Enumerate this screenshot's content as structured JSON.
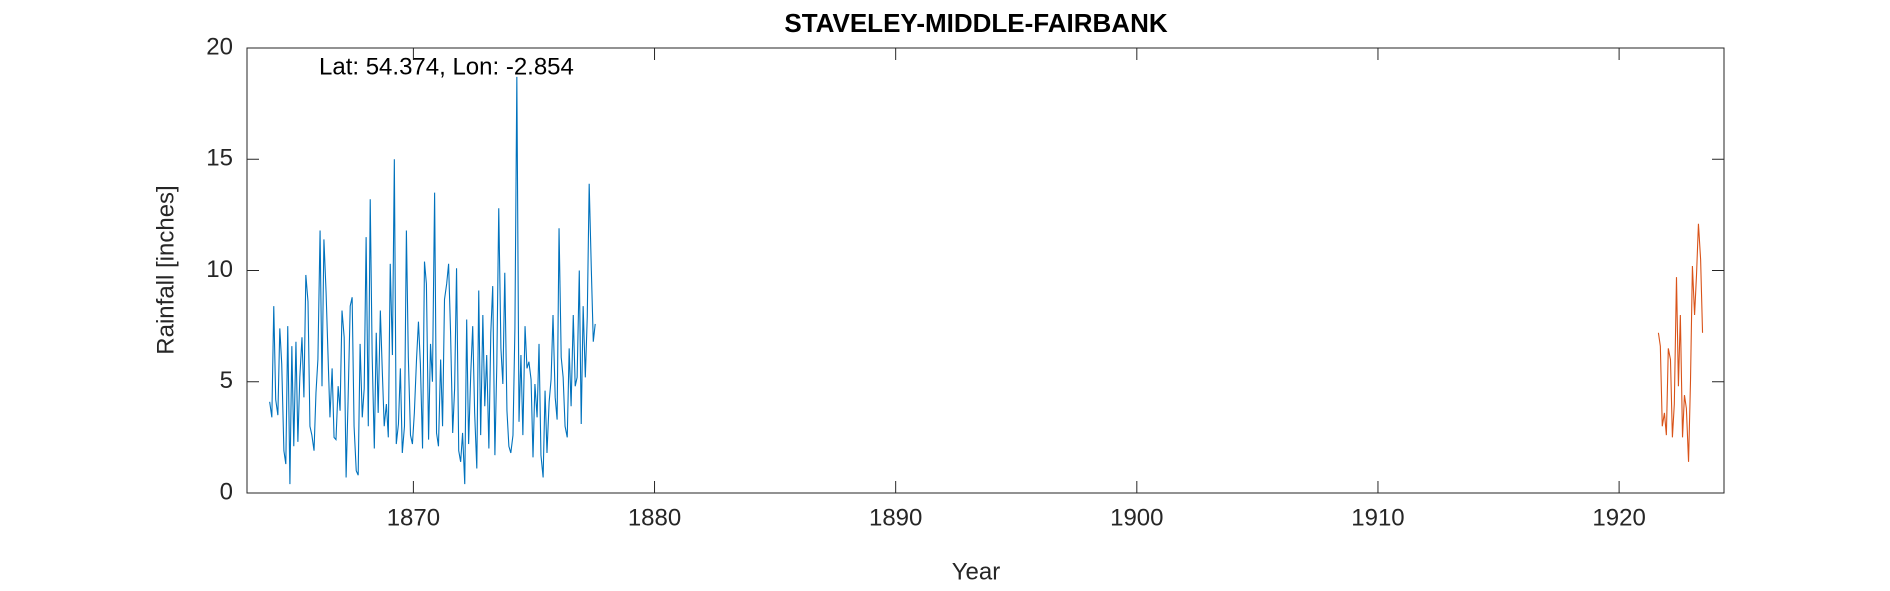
{
  "chart_data": {
    "type": "line",
    "title": "STAVELEY-MIDDLE-FAIRBANK",
    "xlabel": "Year",
    "ylabel": "Rainfall [inches]",
    "annotation": "Lat: 54.374, Lon: -2.854",
    "xlim": [
      1863.1,
      1924.35
    ],
    "ylim": [
      0,
      20
    ],
    "xticks": [
      1870,
      1880,
      1890,
      1900,
      1910,
      1920
    ],
    "yticks": [
      0,
      5,
      10,
      15,
      20
    ],
    "grid": false,
    "series": [
      {
        "color": "#0072bd",
        "x": [
          1864.04,
          1864.13,
          1864.21,
          1864.29,
          1864.38,
          1864.46,
          1864.54,
          1864.63,
          1864.71,
          1864.79,
          1864.88,
          1864.96,
          1865.04,
          1865.13,
          1865.21,
          1865.29,
          1865.38,
          1865.46,
          1865.54,
          1865.63,
          1865.71,
          1865.79,
          1865.88,
          1865.96,
          1866.04,
          1866.13,
          1866.21,
          1866.29,
          1866.38,
          1866.46,
          1866.54,
          1866.63,
          1866.71,
          1866.79,
          1866.88,
          1866.96,
          1867.04,
          1867.13,
          1867.21,
          1867.29,
          1867.38,
          1867.46,
          1867.54,
          1867.63,
          1867.71,
          1867.79,
          1867.88,
          1867.96,
          1868.04,
          1868.13,
          1868.21,
          1868.29,
          1868.38,
          1868.46,
          1868.54,
          1868.63,
          1868.71,
          1868.79,
          1868.88,
          1868.96,
          1869.04,
          1869.13,
          1869.21,
          1869.29,
          1869.38,
          1869.46,
          1869.54,
          1869.63,
          1869.71,
          1869.79,
          1869.88,
          1869.96,
          1870.04,
          1870.13,
          1870.21,
          1870.29,
          1870.38,
          1870.46,
          1870.54,
          1870.63,
          1870.71,
          1870.79,
          1870.88,
          1870.96,
          1871.04,
          1871.13,
          1871.21,
          1871.29,
          1871.38,
          1871.46,
          1871.54,
          1871.63,
          1871.71,
          1871.79,
          1871.88,
          1871.96,
          1872.04,
          1872.13,
          1872.21,
          1872.29,
          1872.38,
          1872.46,
          1872.54,
          1872.63,
          1872.71,
          1872.79,
          1872.88,
          1872.96,
          1873.04,
          1873.13,
          1873.21,
          1873.29,
          1873.38,
          1873.46,
          1873.54,
          1873.63,
          1873.71,
          1873.79,
          1873.88,
          1873.96,
          1874.04,
          1874.13,
          1874.21,
          1874.29,
          1874.38,
          1874.46,
          1874.54,
          1874.63,
          1874.71,
          1874.79,
          1874.88,
          1874.96,
          1875.04,
          1875.13,
          1875.21,
          1875.29,
          1875.38,
          1875.46,
          1875.54,
          1875.63,
          1875.71,
          1875.79,
          1875.88,
          1875.96,
          1876.04,
          1876.13,
          1876.21,
          1876.29,
          1876.38,
          1876.46,
          1876.54,
          1876.63,
          1876.71,
          1876.79,
          1876.88,
          1876.96,
          1877.04,
          1877.13,
          1877.21,
          1877.29,
          1877.38,
          1877.46,
          1877.54
        ],
        "values": [
          4.1,
          3.4,
          8.4,
          4.2,
          3.5,
          7.4,
          5.8,
          1.9,
          1.3,
          7.5,
          0.4,
          6.6,
          2.1,
          6.8,
          2.3,
          5.2,
          7.0,
          4.3,
          9.8,
          8.6,
          3.0,
          2.6,
          1.9,
          4.5,
          6.0,
          11.8,
          4.8,
          11.4,
          9.0,
          6.2,
          3.4,
          5.6,
          2.5,
          2.4,
          4.8,
          3.7,
          8.2,
          7.0,
          0.7,
          4.1,
          8.4,
          8.8,
          3.0,
          1.0,
          0.8,
          6.7,
          3.4,
          4.7,
          11.5,
          3.0,
          13.2,
          6.2,
          2.0,
          7.2,
          3.6,
          8.2,
          5.5,
          3.0,
          4.0,
          2.5,
          10.3,
          6.2,
          15.0,
          2.2,
          3.1,
          5.6,
          1.8,
          3.0,
          11.8,
          6.1,
          2.6,
          2.2,
          3.6,
          6.0,
          7.7,
          5.8,
          2.0,
          10.4,
          9.4,
          2.4,
          6.7,
          5.0,
          13.5,
          2.7,
          2.1,
          6.0,
          3.0,
          8.7,
          9.4,
          10.3,
          7.3,
          2.7,
          4.7,
          10.1,
          1.9,
          1.4,
          2.7,
          0.4,
          7.8,
          2.2,
          5.4,
          7.5,
          3.6,
          1.1,
          9.1,
          2.6,
          8.0,
          3.9,
          6.2,
          2.0,
          7.2,
          9.3,
          1.7,
          5.8,
          12.8,
          6.5,
          4.9,
          9.9,
          3.7,
          2.1,
          1.8,
          2.6,
          7.4,
          18.7,
          3.2,
          6.2,
          2.6,
          7.5,
          5.6,
          5.9,
          5.1,
          1.6,
          4.9,
          3.4,
          6.7,
          1.7,
          0.7,
          4.6,
          1.8,
          4.1,
          5.1,
          8.0,
          4.3,
          3.3,
          11.9,
          6.1,
          5.2,
          3.0,
          2.5,
          6.5,
          3.9,
          8.0,
          4.8,
          5.2,
          10.0,
          3.1,
          8.4,
          5.2,
          7.9,
          13.9,
          10.0,
          6.8,
          7.6
        ]
      },
      {
        "color": "#d95319",
        "x": [
          1921.63,
          1921.71,
          1921.79,
          1921.88,
          1921.96,
          1922.04,
          1922.13,
          1922.21,
          1922.29,
          1922.38,
          1922.46,
          1922.54,
          1922.63,
          1922.71,
          1922.79,
          1922.88,
          1922.96,
          1923.04,
          1923.13,
          1923.21,
          1923.29,
          1923.38,
          1923.46
        ],
        "values": [
          7.2,
          6.6,
          3.0,
          3.6,
          2.6,
          6.5,
          6.0,
          2.5,
          4.0,
          9.7,
          4.8,
          8.0,
          2.5,
          4.4,
          3.8,
          1.4,
          5.0,
          10.2,
          8.0,
          9.8,
          12.1,
          10.5,
          7.2
        ]
      }
    ]
  }
}
